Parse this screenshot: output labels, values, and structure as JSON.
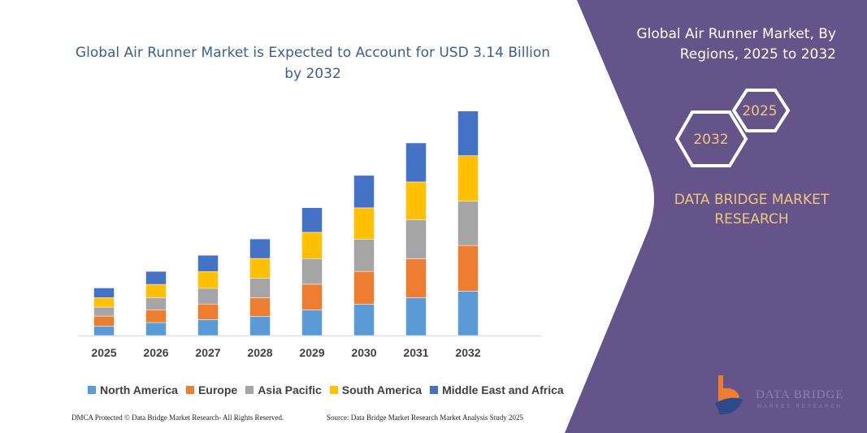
{
  "chart_data": {
    "type": "bar",
    "stacked": true,
    "title": "Global Air Runner Market is Expected to Account for USD 3.14 Billion by 2032",
    "xlabel": "",
    "ylabel": "",
    "ylim": [
      0,
      290
    ],
    "grid": false,
    "legend_position": "bottom",
    "categories": [
      "2025",
      "2026",
      "2027",
      "2028",
      "2029",
      "2030",
      "2031",
      "2032"
    ],
    "series": [
      {
        "name": "North America",
        "color": "#5b9bd5",
        "values": [
          11.6,
          16,
          19.6,
          23.6,
          31.6,
          38.6,
          46.6,
          54.6
        ]
      },
      {
        "name": "Europe",
        "color": "#ed7d31",
        "values": [
          12.4,
          15.6,
          19.3,
          23,
          31.6,
          40.4,
          48,
          56.4
        ]
      },
      {
        "name": "Asia Pacific",
        "color": "#a5a5a5",
        "values": [
          11,
          15,
          19.3,
          24,
          31.6,
          39.6,
          48,
          54.6
        ]
      },
      {
        "name": "South America",
        "color": "#ffc000",
        "values": [
          11.6,
          16.4,
          20.7,
          24.4,
          32.4,
          38.7,
          46.7,
          56
        ]
      },
      {
        "name": "Middle East and Africa",
        "color": "#4472c4",
        "values": [
          12,
          16,
          20,
          24,
          30.3,
          40,
          48,
          55
        ]
      }
    ]
  },
  "side_panel": {
    "title": "Global Air Runner Market, By Regions, 2025 to 2032",
    "hex_start": "2025",
    "hex_end": "2032",
    "brand": "DATA BRIDGE MARKET RESEARCH",
    "logo_text": "DATA BRIDGE MARKET RESEARCH",
    "bg_color": "#65548a",
    "accent_color": "#f2c57c"
  },
  "footer": {
    "copyright": "DMCA Protected © Data Bridge Market Research-  All Rights Reserved.",
    "source": "Source: Data Bridge Market Research Market Analysis Study 2025"
  }
}
